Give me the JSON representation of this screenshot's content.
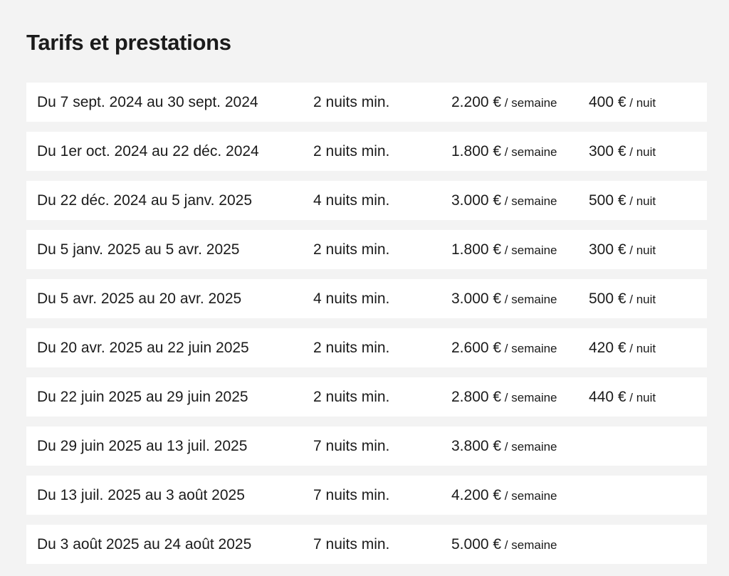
{
  "title": "Tarifs et prestations",
  "rates": [
    {
      "period": "Du 7 sept. 2024 au 30 sept. 2024",
      "min_nights": "2 nuits min.",
      "week_price": "2.200 €",
      "week_unit": " / semaine",
      "night_price": "400 €",
      "night_unit": " / nuit"
    },
    {
      "period": "Du 1er oct. 2024 au 22 déc. 2024",
      "min_nights": "2 nuits min.",
      "week_price": "1.800 €",
      "week_unit": " / semaine",
      "night_price": "300 €",
      "night_unit": " / nuit"
    },
    {
      "period": "Du 22 déc. 2024 au 5 janv. 2025",
      "min_nights": "4 nuits min.",
      "week_price": "3.000 €",
      "week_unit": " / semaine",
      "night_price": "500 €",
      "night_unit": " / nuit"
    },
    {
      "period": "Du 5 janv. 2025 au 5 avr. 2025",
      "min_nights": "2 nuits min.",
      "week_price": "1.800 €",
      "week_unit": " / semaine",
      "night_price": "300 €",
      "night_unit": " / nuit"
    },
    {
      "period": "Du 5 avr. 2025 au 20 avr. 2025",
      "min_nights": "4 nuits min.",
      "week_price": "3.000 €",
      "week_unit": " / semaine",
      "night_price": "500 €",
      "night_unit": " / nuit"
    },
    {
      "period": "Du 20 avr. 2025 au 22 juin 2025",
      "min_nights": "2 nuits min.",
      "week_price": "2.600 €",
      "week_unit": " / semaine",
      "night_price": "420 €",
      "night_unit": " / nuit"
    },
    {
      "period": "Du 22 juin 2025 au 29 juin 2025",
      "min_nights": "2 nuits min.",
      "week_price": "2.800 €",
      "week_unit": " / semaine",
      "night_price": "440 €",
      "night_unit": " / nuit"
    },
    {
      "period": "Du 29 juin 2025 au 13 juil. 2025",
      "min_nights": "7 nuits min.",
      "week_price": "3.800 €",
      "week_unit": " / semaine",
      "night_price": "",
      "night_unit": ""
    },
    {
      "period": "Du 13 juil. 2025 au 3 août 2025",
      "min_nights": "7 nuits min.",
      "week_price": "4.200 €",
      "week_unit": " / semaine",
      "night_price": "",
      "night_unit": ""
    },
    {
      "period": "Du 3 août 2025 au 24 août 2025",
      "min_nights": "7 nuits min.",
      "week_price": "5.000 €",
      "week_unit": " / semaine",
      "night_price": "",
      "night_unit": ""
    }
  ]
}
